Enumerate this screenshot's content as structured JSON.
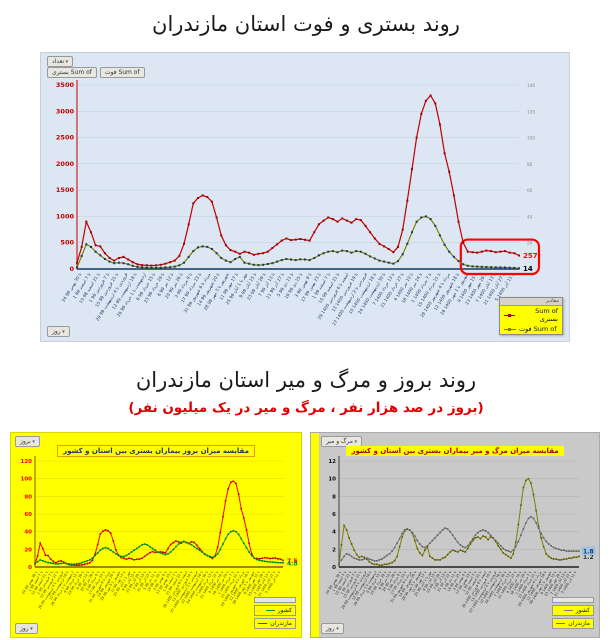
{
  "section_top": {
    "title": "روند بستری و فوت استان مازندران"
  },
  "section_bottom": {
    "title": "روند بروز و مرگ و میر استان مازندران",
    "subtitle": "(بروز در صد هزار نفر ، مرگ و میر در یک میلیون نفر)"
  },
  "x_labels": [
    "24 تا 30 بهمن 98",
    "1 تا 7 اسفند 98",
    "15 تا 21 اسفند 98",
    "1 تا 7 فروردین 99",
    "15 تا 21 فروردین 99",
    "29 فروردین تا 4 اردیبهشت 99",
    "12 تا 18 اردیبهشت 99",
    "26 اردیبهشت تا 1 خرداد 99",
    "9 تا 15 خرداد 99",
    "23 تا 29 خرداد 99",
    "6 تا 12 تیر 99",
    "20 تا 26 تیر 99",
    "3 تا 9 مرداد 99",
    "17 تا 23 مرداد 99",
    "31 مرداد تا 6 شهریور 99",
    "14 تا 20 شهریور 99",
    "28 شهریور تا 3 مهر 99",
    "11 تا 17 مهر 99",
    "25 مهر تا 1 آبان 99",
    "9 تا 15 آبان 99",
    "23 تا 29 آبان 99",
    "7 تا 13 آذر 99",
    "21 تا 27 آذر 99",
    "5 تا 11 دی 99",
    "19 تا 25 دی 99",
    "3 تا 9 بهمن 99",
    "17 تا 23 بهمن 99",
    "1 تا 7 اسفند 99",
    "15 تا 21 اسفند 99",
    "29 اسفند تا 6 فروردین 1400",
    "13 تا 19 فروردین 1400",
    "27 فروردین تا 2 اردیبهشت 1400",
    "10 تا 16 اردیبهشت 1400",
    "24 تا 30 اردیبهشت 1400",
    "7 تا 13 خرداد 1400",
    "21 تا 27 خرداد 1400",
    "4 تا 10 تیر 1400",
    "18 تا 24 تیر 1400",
    "1 تا 7 مرداد 1400",
    "15 تا 21 مرداد 1400",
    "29 مرداد تا 4 شهریور 1400",
    "12 تا 18 شهریور 1400",
    "26 شهریور تا 1 مهر 1400",
    "9 تا 15 مهر 1400",
    "23 تا 29 مهر 1400",
    "7 تا 13 آبان 1400",
    "21 تا 27 آبان 1400",
    "5 تا 11 آذر 1400"
  ],
  "chart_data": [
    {
      "id": "hospitalization-death-trend",
      "type": "line",
      "title": "روند بستری و فوت استان مازندران",
      "x_axis_note": "هفته‌های بهمن 1398 تا آذر 1400",
      "ylim": [
        0,
        3500
      ],
      "y_step": 500,
      "y2lim": [
        0,
        140
      ],
      "y2_step": 20,
      "grid": true,
      "legend_position": "bottom-right",
      "value_field_button": "تعداد",
      "filter_button": "روز",
      "legend_header": "مقادیر",
      "series": [
        {
          "name": "Sum of بستری",
          "color": "#c00000",
          "marker": 2,
          "marker_color": "#a00000",
          "end_label": "257",
          "end_label_color": "#ff0000",
          "values": [
            120,
            420,
            900,
            700,
            450,
            430,
            300,
            210,
            160,
            210,
            230,
            180,
            130,
            90,
            75,
            70,
            65,
            70,
            80,
            100,
            130,
            160,
            250,
            480,
            850,
            1250,
            1350,
            1400,
            1370,
            1280,
            980,
            640,
            450,
            360,
            330,
            290,
            330,
            310,
            270,
            290,
            300,
            330,
            400,
            470,
            540,
            580,
            550,
            560,
            570,
            555,
            540,
            700,
            850,
            920,
            980,
            950,
            900,
            960,
            920,
            880,
            950,
            930,
            820,
            700,
            580,
            480,
            430,
            380,
            320,
            420,
            750,
            1300,
            1900,
            2500,
            2950,
            3200,
            3300,
            3150,
            2750,
            2200,
            1850,
            1400,
            900,
            500,
            330,
            320,
            310,
            330,
            350,
            340,
            320,
            330,
            340,
            310,
            300,
            257
          ]
        },
        {
          "name": "Sum of فوت",
          "color": "#7f7f00",
          "marker": 2,
          "marker_color": "#17375d",
          "end_label": "14",
          "end_label_color": "#000000",
          "values": [
            30,
            250,
            470,
            420,
            330,
            260,
            190,
            140,
            110,
            120,
            110,
            90,
            60,
            40,
            30,
            25,
            20,
            20,
            25,
            30,
            35,
            45,
            70,
            120,
            230,
            340,
            410,
            430,
            420,
            380,
            300,
            210,
            160,
            130,
            190,
            230,
            120,
            100,
            80,
            75,
            80,
            95,
            110,
            140,
            170,
            190,
            180,
            170,
            185,
            180,
            170,
            210,
            260,
            300,
            330,
            340,
            320,
            350,
            340,
            310,
            340,
            330,
            290,
            240,
            200,
            160,
            140,
            120,
            100,
            150,
            280,
            480,
            700,
            900,
            980,
            1000,
            950,
            820,
            640,
            460,
            330,
            230,
            150,
            90,
            60,
            50,
            45,
            40,
            38,
            35,
            32,
            30,
            28,
            25,
            20,
            14
          ]
        }
      ],
      "annotation": {
        "note": "کادر قرمز دور مقادیر پایانی",
        "from_index": 84,
        "to_index": 95,
        "y_top": 560
      }
    },
    {
      "id": "incidence-comparison",
      "type": "line",
      "title": "مقایسه میزان بروز بیماران بستری بین استان و کشور",
      "ylim": [
        0,
        120
      ],
      "y_step": 20,
      "grid": true,
      "field_button": "بروز",
      "filter_button": "روز",
      "legend_items": [
        "کشور",
        "مازندران"
      ],
      "series": [
        {
          "name": "مازندران",
          "color": "#ff0000",
          "marker": 1.6,
          "marker_color": "#b00000",
          "end_label": "7.5",
          "end_label_color": "#ff0000",
          "values": [
            3.6,
            12.6,
            27,
            21,
            13.5,
            12.9,
            9,
            6.3,
            4.8,
            6.3,
            6.9,
            5.4,
            3.9,
            2.7,
            2.3,
            2.1,
            2,
            2.1,
            2.4,
            3,
            3.9,
            4.8,
            7.5,
            14.4,
            25.5,
            37.5,
            40.5,
            42,
            41.1,
            38.4,
            29.4,
            19.2,
            13.5,
            10.8,
            9.9,
            8.7,
            9.9,
            9.3,
            8.1,
            8.7,
            9,
            9.9,
            12,
            14.1,
            16.2,
            17.4,
            16.5,
            16.8,
            17.1,
            16.7,
            16.2,
            21,
            25.5,
            27.6,
            29.4,
            28.5,
            27,
            28.8,
            27.6,
            26.4,
            28.5,
            27.9,
            24.6,
            21,
            17.4,
            14.4,
            12.9,
            11.4,
            9.6,
            12.6,
            22.5,
            39,
            57,
            75,
            88.5,
            96,
            97,
            94.5,
            82.5,
            66,
            55.5,
            42,
            27,
            15,
            9.9,
            9.6,
            9.3,
            9.9,
            10.5,
            10.2,
            9.6,
            9.9,
            10.2,
            9.3,
            9,
            7.5
          ]
        },
        {
          "name": "کشور",
          "color": "#00a33c",
          "marker": 1.6,
          "marker_color": "#007a2a",
          "end_label": "4.8",
          "end_label_color": "#008a30",
          "values": [
            4,
            6,
            8,
            7,
            6,
            5,
            4.5,
            4,
            3.5,
            3.5,
            4,
            4.5,
            4,
            3.5,
            3,
            3,
            3.5,
            4,
            5,
            6,
            7,
            8,
            10,
            13,
            16,
            19,
            21,
            22,
            21,
            19,
            17,
            15,
            13,
            12,
            12,
            13,
            15,
            17,
            19,
            21,
            23,
            25,
            26,
            25,
            23,
            21,
            19,
            17,
            16,
            15,
            14,
            15,
            17,
            20,
            23,
            26,
            28,
            29,
            28,
            27,
            25,
            23,
            21,
            19,
            17,
            15,
            13,
            12,
            11,
            12,
            15,
            20,
            26,
            32,
            37,
            40,
            41,
            40,
            37,
            32,
            27,
            22,
            17,
            13,
            10,
            8.5,
            7.5,
            7,
            6.5,
            6,
            5.8,
            5.5,
            5.2,
            5,
            4.9,
            4.8
          ]
        }
      ]
    },
    {
      "id": "mortality-comparison",
      "type": "line",
      "title": "مقایسه میزان مرگ و میر بیماران بستری بین استان و کشور",
      "ylim": [
        0,
        12
      ],
      "y_step": 2,
      "grid": true,
      "field_button": "مرگ و میر",
      "filter_button": "روز",
      "legend_items": [
        "کشور",
        "مازندران"
      ],
      "series": [
        {
          "name": "مازندران",
          "color": "#808000",
          "marker": 1.6,
          "marker_color": "#5a5a00",
          "end_label": "1.2",
          "end_label_color": "#333333",
          "values": [
            0.3,
            2.5,
            4.7,
            4.2,
            3.3,
            2.6,
            1.9,
            1.4,
            1.1,
            1.2,
            1.1,
            0.9,
            0.6,
            0.4,
            0.3,
            0.3,
            0.2,
            0.2,
            0.3,
            0.3,
            0.4,
            0.5,
            0.7,
            1.2,
            2.3,
            3.4,
            4.1,
            4.3,
            4.2,
            3.8,
            3,
            2.1,
            1.6,
            1.3,
            1.9,
            2.3,
            1.2,
            1,
            0.8,
            0.8,
            0.8,
            1,
            1.1,
            1.4,
            1.7,
            1.9,
            1.8,
            1.7,
            1.9,
            1.8,
            1.7,
            2.1,
            2.6,
            3,
            3.3,
            3.4,
            3.2,
            3.5,
            3.4,
            3.1,
            3.4,
            3.3,
            2.9,
            2.4,
            2,
            1.6,
            1.4,
            1.2,
            1,
            1.5,
            2.8,
            4.8,
            7,
            9,
            9.8,
            10,
            9.5,
            8.2,
            6.4,
            4.6,
            3.3,
            2.3,
            1.5,
            1.2,
            1,
            0.9,
            0.9,
            0.8,
            0.8,
            0.9,
            0.9,
            1,
            1,
            1.1,
            1.1,
            1.2
          ]
        },
        {
          "name": "کشور",
          "color": "#808080",
          "marker": 1.6,
          "marker_color": "#5f5f5f",
          "end_label": "1.8",
          "end_label_color": "#1f3864",
          "end_label_bg": "#9dc3e6",
          "values": [
            0.5,
            0.8,
            1.2,
            1.5,
            1.4,
            1.2,
            1,
            0.9,
            0.8,
            0.8,
            0.9,
            1,
            0.9,
            0.8,
            0.7,
            0.7,
            0.8,
            0.9,
            1.1,
            1.3,
            1.5,
            1.8,
            2.2,
            2.7,
            3.2,
            3.8,
            4.2,
            4.3,
            4.2,
            3.9,
            3.5,
            3,
            2.6,
            2.3,
            2.2,
            2.4,
            2.7,
            3,
            3.3,
            3.6,
            3.9,
            4.2,
            4.4,
            4.3,
            4,
            3.6,
            3.2,
            2.8,
            2.5,
            2.3,
            2.2,
            2.4,
            2.8,
            3.2,
            3.6,
            3.9,
            4.1,
            4.2,
            4.1,
            3.9,
            3.6,
            3.3,
            3,
            2.7,
            2.4,
            2.1,
            1.9,
            1.8,
            1.7,
            1.9,
            2.3,
            2.9,
            3.6,
            4.3,
            5,
            5.5,
            5.7,
            5.5,
            5,
            4.4,
            3.8,
            3.3,
            2.9,
            2.6,
            2.4,
            2.2,
            2.1,
            2,
            1.9,
            1.9,
            1.8,
            1.8,
            1.8,
            1.8,
            1.8,
            1.8
          ]
        }
      ]
    }
  ]
}
